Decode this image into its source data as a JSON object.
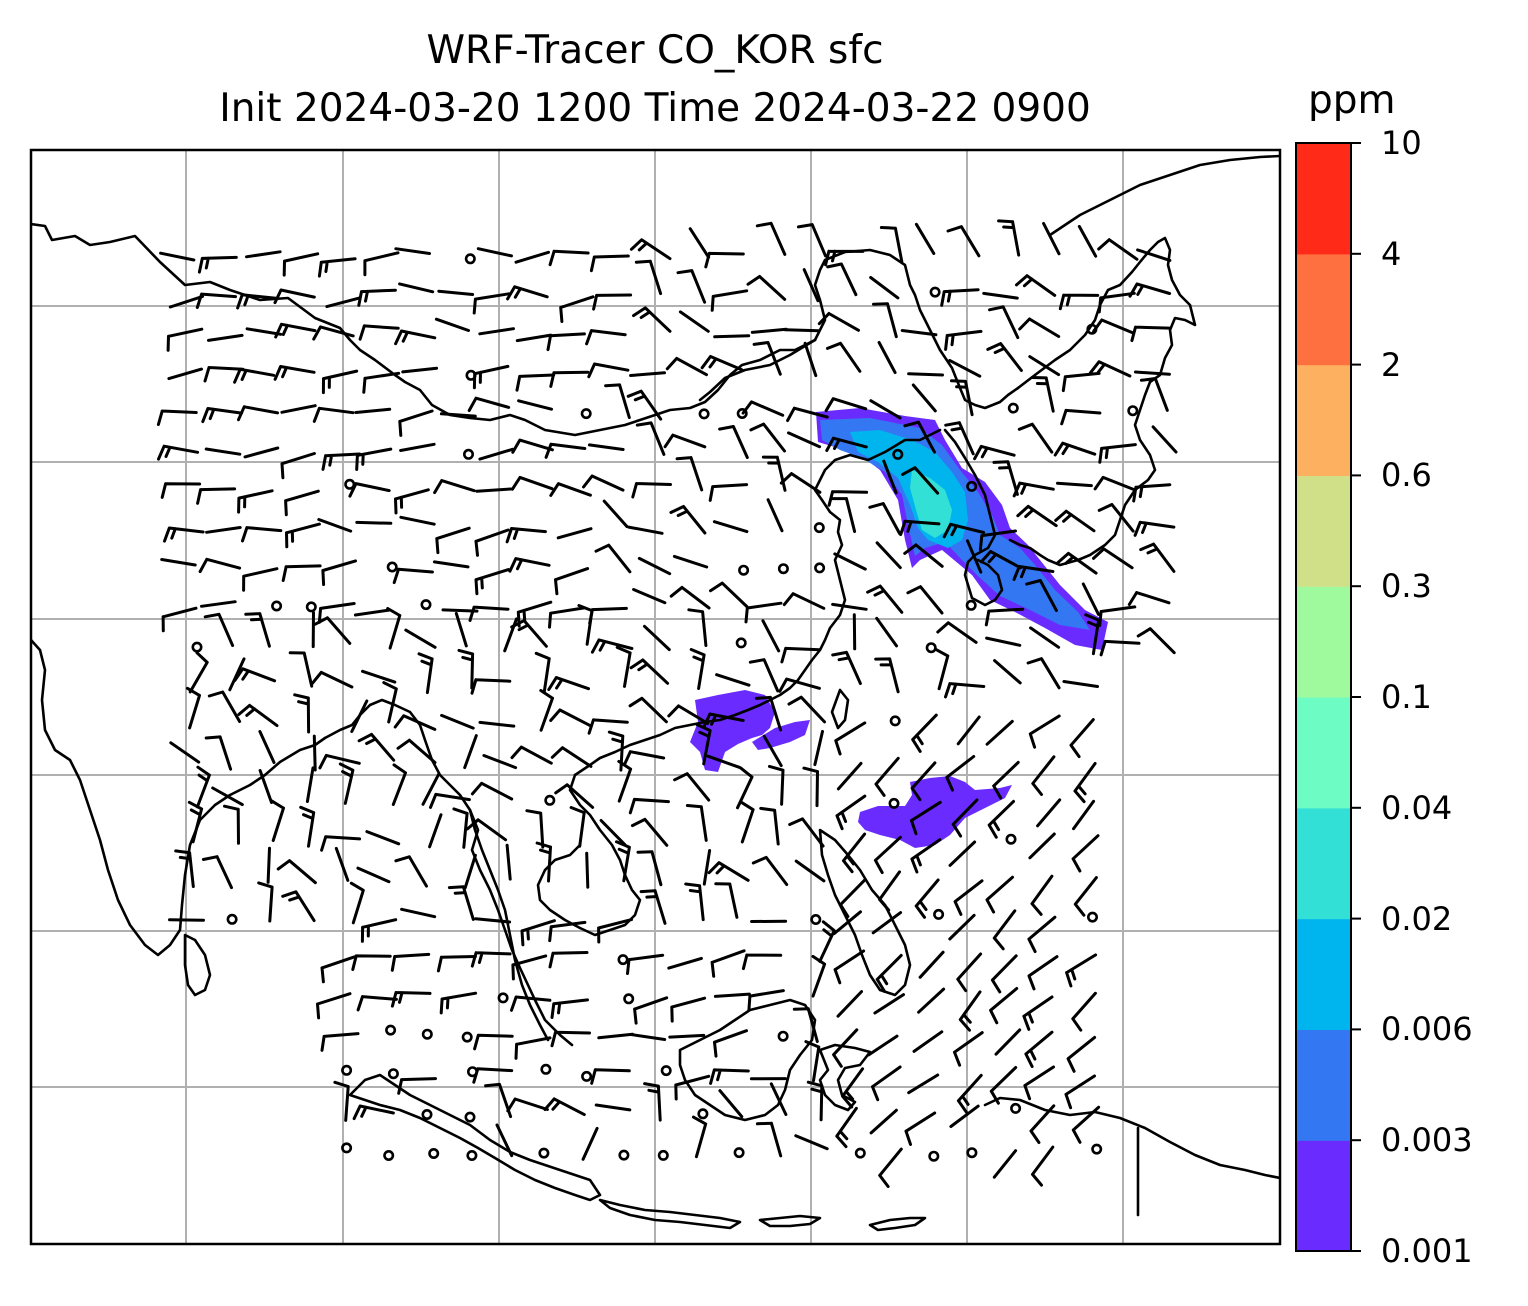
{
  "title_line1": "WRF-Tracer CO_KOR sfc",
  "title_line2": "Init 2024-03-20 1200 Time 2024-03-22 0900",
  "colorbar": {
    "unit": "ppm",
    "levels": [
      "0.001",
      "0.003",
      "0.006",
      "0.02",
      "0.04",
      "0.1",
      "0.3",
      "0.6",
      "2",
      "4",
      "10"
    ],
    "colors": [
      "#6a2bff",
      "#3378f2",
      "#00b4ee",
      "#33e0d6",
      "#6cfcc4",
      "#9efa9c",
      "#d0e088",
      "#fcb060",
      "#ff7040",
      "#ff2a18"
    ]
  },
  "map": {
    "projection": "PlateCarree",
    "gridlines": true,
    "coastlines": true,
    "layers": [
      "CO tracer concentration (filled contours)",
      "wind barbs"
    ]
  }
}
